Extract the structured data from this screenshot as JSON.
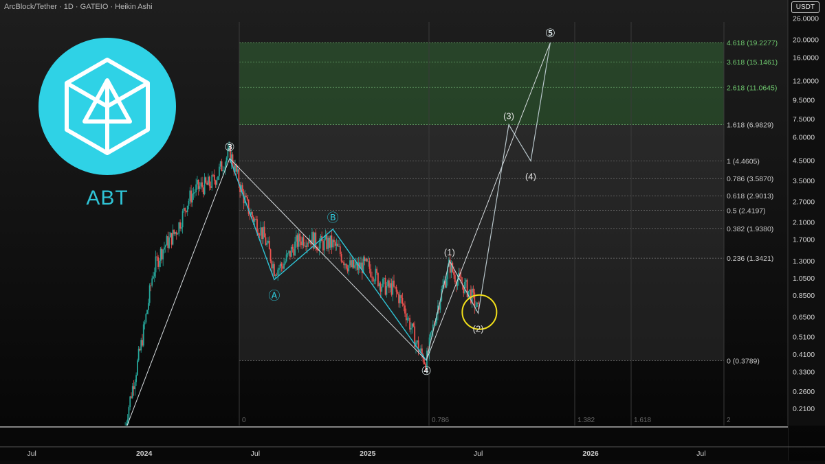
{
  "header": {
    "title": "ArcBlock/Tether · 1D · GATEIO · Heikin Ashi",
    "currency": "USDT"
  },
  "logo": {
    "ticker": "ABT"
  },
  "colors": {
    "background": "#0c0c0c",
    "accent": "#2fc4d6",
    "up": "#26a69a",
    "down": "#ef5350",
    "target_zone": "#4caf50",
    "highlight": "#f2e01a"
  },
  "chart_data": {
    "type": "line",
    "title": "ArcBlock/Tether · 1D · GATEIO · Heikin Ashi",
    "y_scale": "log",
    "ylim": [
      0.17,
      27
    ],
    "y_ticks": [
      "26.0000",
      "20.0000",
      "16.0000",
      "12.0000",
      "9.5000",
      "7.5000",
      "6.0000",
      "4.5000",
      "3.5000",
      "2.7000",
      "2.1000",
      "1.7000",
      "1.3000",
      "1.0500",
      "0.8500",
      "0.6500",
      "0.5100",
      "0.4100",
      "0.3300",
      "0.2600",
      "0.2100"
    ],
    "x_ticks": [
      "Jul",
      "2024",
      "Jul",
      "2025",
      "Jul",
      "2026",
      "Jul"
    ],
    "xlim": [
      "2023-05-10",
      "2026-11-20"
    ],
    "fib_levels": [
      {
        "label": "4.618 (19.2277)",
        "value": 19.2277
      },
      {
        "label": "3.618 (15.1461)",
        "value": 15.1461
      },
      {
        "label": "2.618 (11.0645)",
        "value": 11.0645
      },
      {
        "label": "1.618 (6.9829)",
        "value": 6.9829
      },
      {
        "label": "1 (4.4605)",
        "value": 4.4605
      },
      {
        "label": "0.786 (3.5870)",
        "value": 3.587
      },
      {
        "label": "0.618 (2.9013)",
        "value": 2.9013
      },
      {
        "label": "0.5 (2.4197)",
        "value": 2.4197
      },
      {
        "label": "0.382 (1.9380)",
        "value": 1.938
      },
      {
        "label": "0.236 (1.3421)",
        "value": 1.3421
      },
      {
        "label": "0 (0.3789)",
        "value": 0.3789
      }
    ],
    "target_zone": {
      "from": 6.9829,
      "to": 19.2277
    },
    "time_fib_labels": [
      "0",
      "0.786",
      "1.382",
      "1.618",
      "2"
    ],
    "price_path": [
      {
        "x": "2023-12-01",
        "y": 0.16
      },
      {
        "x": "2024-01-15",
        "y": 1.1
      },
      {
        "x": "2024-03-10",
        "y": 2.6
      },
      {
        "x": "2024-05-20",
        "y": 4.6
      },
      {
        "x": "2024-08-01",
        "y": 1.2
      },
      {
        "x": "2024-10-01",
        "y": 1.8
      },
      {
        "x": "2024-12-01",
        "y": 1.3
      },
      {
        "x": "2025-02-10",
        "y": 0.95
      },
      {
        "x": "2025-04-07",
        "y": 0.38
      },
      {
        "x": "2025-05-15",
        "y": 1.3
      },
      {
        "x": "2025-07-01",
        "y": 0.68
      }
    ],
    "wave_labels": [
      {
        "label": "③",
        "x": "2024-05-20",
        "y": 4.6,
        "style": "primary"
      },
      {
        "label": "Ⓐ",
        "x": "2024-08-01",
        "y": 1.03,
        "style": "corrective"
      },
      {
        "label": "Ⓑ",
        "x": "2024-11-05",
        "y": 1.92,
        "style": "corrective"
      },
      {
        "label": "④",
        "x": "2025-04-07",
        "y": 0.38,
        "style": "primary"
      },
      {
        "label": "(1)",
        "x": "2025-05-15",
        "y": 1.3,
        "style": "minor"
      },
      {
        "label": "(2)",
        "x": "2025-07-01",
        "y": 0.68,
        "style": "minor"
      },
      {
        "label": "(3)",
        "x": "2025-08-20",
        "y": 6.98,
        "style": "minor"
      },
      {
        "label": "(4)",
        "x": "2025-09-25",
        "y": 4.46,
        "style": "minor"
      },
      {
        "label": "⑤",
        "x": "2025-10-27",
        "y": 19.2277,
        "style": "primary"
      }
    ],
    "wave_lines": [
      {
        "name": "impulse-a",
        "points": [
          {
            "x": "2023-12-01",
            "y": 0.16
          },
          {
            "x": "2024-05-20",
            "y": 4.6
          },
          {
            "x": "2025-04-07",
            "y": 0.38
          },
          {
            "x": "2025-10-27",
            "y": 19.2277
          }
        ]
      },
      {
        "name": "corrective-abc",
        "points": [
          {
            "x": "2024-05-20",
            "y": 4.6
          },
          {
            "x": "2024-08-01",
            "y": 1.03
          },
          {
            "x": "2024-11-05",
            "y": 1.92
          },
          {
            "x": "2025-04-07",
            "y": 0.38
          }
        ]
      },
      {
        "name": "sub-waves",
        "points": [
          {
            "x": "2025-04-07",
            "y": 0.38
          },
          {
            "x": "2025-05-15",
            "y": 1.3
          },
          {
            "x": "2025-07-01",
            "y": 0.68
          },
          {
            "x": "2025-08-20",
            "y": 6.98
          },
          {
            "x": "2025-09-25",
            "y": 4.46
          },
          {
            "x": "2025-10-27",
            "y": 19.2277
          }
        ]
      }
    ],
    "highlight_circle": {
      "x": "2025-07-03",
      "y": 0.69
    }
  }
}
